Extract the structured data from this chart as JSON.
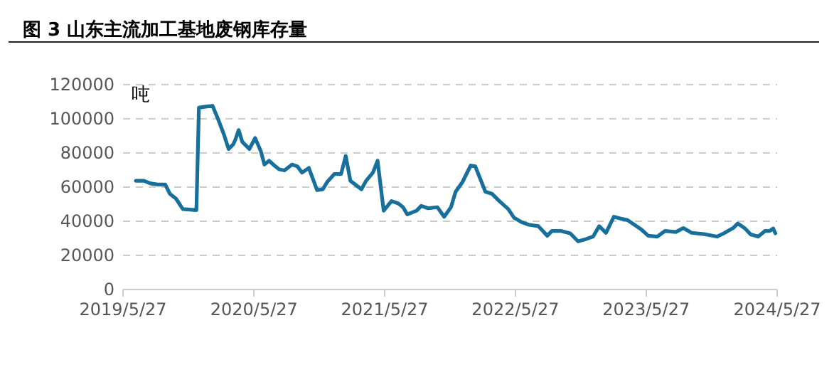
{
  "chart_data": {
    "type": "line",
    "title": "图 3  山东主流加工基地废钢库存量",
    "ylabel": "吨",
    "x": [
      "2019-07-04",
      "2019-07-26",
      "2019-08-14",
      "2019-09-03",
      "2019-09-24",
      "2019-10-07",
      "2019-10-24",
      "2019-11-12",
      "2019-12-20",
      "2019-12-27",
      "2020-01-15",
      "2020-02-03",
      "2020-02-20",
      "2020-03-06",
      "2020-03-19",
      "2020-04-01",
      "2020-04-07",
      "2020-04-16",
      "2020-04-26",
      "2020-05-16",
      "2020-06-01",
      "2020-06-17",
      "2020-06-27",
      "2020-07-10",
      "2020-07-25",
      "2020-08-07",
      "2020-08-22",
      "2020-09-12",
      "2020-09-27",
      "2020-10-10",
      "2020-10-29",
      "2020-11-21",
      "2020-12-07",
      "2020-12-19",
      "2021-01-08",
      "2021-01-27",
      "2021-02-09",
      "2021-02-22",
      "2021-03-25",
      "2021-04-07",
      "2021-04-26",
      "2021-05-09",
      "2021-05-26",
      "2021-06-17",
      "2021-07-06",
      "2021-07-19",
      "2021-07-31",
      "2021-08-26",
      "2021-09-08",
      "2021-09-27",
      "2021-10-23",
      "2021-11-11",
      "2021-11-30",
      "2021-12-13",
      "2022-01-01",
      "2022-01-24",
      "2022-02-06",
      "2022-03-06",
      "2022-03-25",
      "2022-04-14",
      "2022-05-09",
      "2022-05-25",
      "2022-06-17",
      "2022-07-06",
      "2022-08-01",
      "2022-08-26",
      "2022-09-08",
      "2022-10-04",
      "2022-10-29",
      "2022-11-20",
      "2022-12-13",
      "2023-01-01",
      "2023-01-18",
      "2023-02-06",
      "2023-02-28",
      "2023-03-19",
      "2023-04-07",
      "2023-05-16",
      "2023-06-04",
      "2023-06-29",
      "2023-07-21",
      "2023-08-20",
      "2023-09-10",
      "2023-10-03",
      "2023-11-11",
      "2023-12-13",
      "2024-01-01",
      "2024-01-27",
      "2024-02-09",
      "2024-02-28",
      "2024-03-16",
      "2024-04-06",
      "2024-04-25",
      "2024-05-08",
      "2024-05-18",
      "2024-05-24"
    ],
    "series": [
      {
        "color": "#17709c",
        "values": [
          63300,
          63300,
          61700,
          61100,
          61100,
          55600,
          52800,
          46700,
          46100,
          106100,
          106700,
          107200,
          98600,
          90300,
          81900,
          84700,
          87500,
          93000,
          86100,
          81900,
          88300,
          80600,
          72800,
          75000,
          72200,
          70000,
          69400,
          72800,
          71700,
          68100,
          70800,
          57800,
          58300,
          62500,
          67200,
          67200,
          77800,
          63300,
          58300,
          63300,
          68100,
          75000,
          45800,
          51400,
          50000,
          47800,
          43600,
          45800,
          48600,
          47200,
          47800,
          42200,
          47800,
          56900,
          62500,
          72200,
          71700,
          56900,
          55600,
          51400,
          46700,
          41700,
          38900,
          37500,
          36700,
          31100,
          33900,
          33900,
          32500,
          27800,
          29200,
          30600,
          36700,
          32800,
          42200,
          41100,
          40300,
          34700,
          31100,
          30600,
          33900,
          33300,
          35600,
          32800,
          31900,
          30600,
          32500,
          35600,
          38300,
          35600,
          31900,
          30600,
          33900,
          33900,
          35300,
          32500
        ]
      }
    ],
    "xlim": [
      "2019-05-27",
      "2024-05-27"
    ],
    "xticks": [
      {
        "value": "2019-05-27",
        "label": "2019/5/27"
      },
      {
        "value": "2020-05-27",
        "label": "2020/5/27"
      },
      {
        "value": "2021-05-27",
        "label": "2021/5/27"
      },
      {
        "value": "2022-05-27",
        "label": "2022/5/27"
      },
      {
        "value": "2023-05-27",
        "label": "2023/5/27"
      },
      {
        "value": "2024-05-27",
        "label": "2024/5/27"
      }
    ],
    "ylim": [
      0,
      120000
    ],
    "yticks": [
      0,
      20000,
      40000,
      60000,
      80000,
      100000,
      120000
    ],
    "grid": "y",
    "legend": false,
    "marker": "none",
    "line_style": "solid"
  }
}
